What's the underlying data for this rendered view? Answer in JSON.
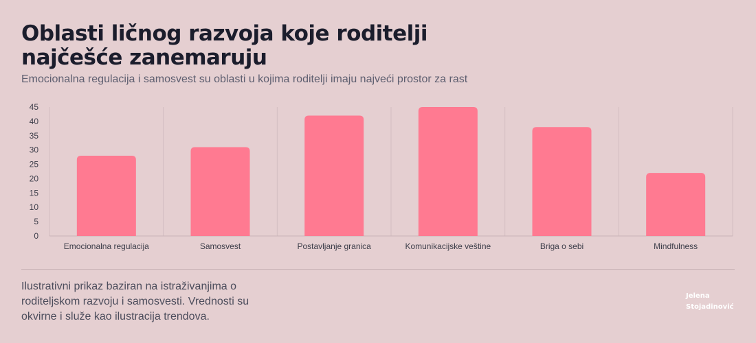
{
  "header": {
    "title": "Oblasti ličnog razvoja koje roditelji najčešće zanemaruju",
    "subtitle": "Emocionalna regulacija i samosvest su oblasti u kojima roditelji imaju najveći prostor za rast"
  },
  "chart_data": {
    "type": "bar",
    "categories": [
      "Emocionalna regulacija",
      "Samosvest",
      "Postavljanje granica",
      "Komunikacijske veštine",
      "Briga o sebi",
      "Mindfulness"
    ],
    "values": [
      28,
      31,
      42,
      45,
      38,
      22
    ],
    "xlabel": "",
    "ylabel": "",
    "ylim": [
      0,
      45
    ],
    "yticks": [
      0,
      5,
      10,
      15,
      20,
      25,
      30,
      35,
      40,
      45
    ],
    "grid": "vertical",
    "legend": "none",
    "bar_color": "#ff7a91"
  },
  "footer": {
    "note": "Ilustrativni prikaz baziran na istraživanjima o roditeljskom razvoju i samosvesti. Vrednosti su okvirne i služe kao ilustracija trendova.",
    "author": "Jelena Stojadinović"
  }
}
